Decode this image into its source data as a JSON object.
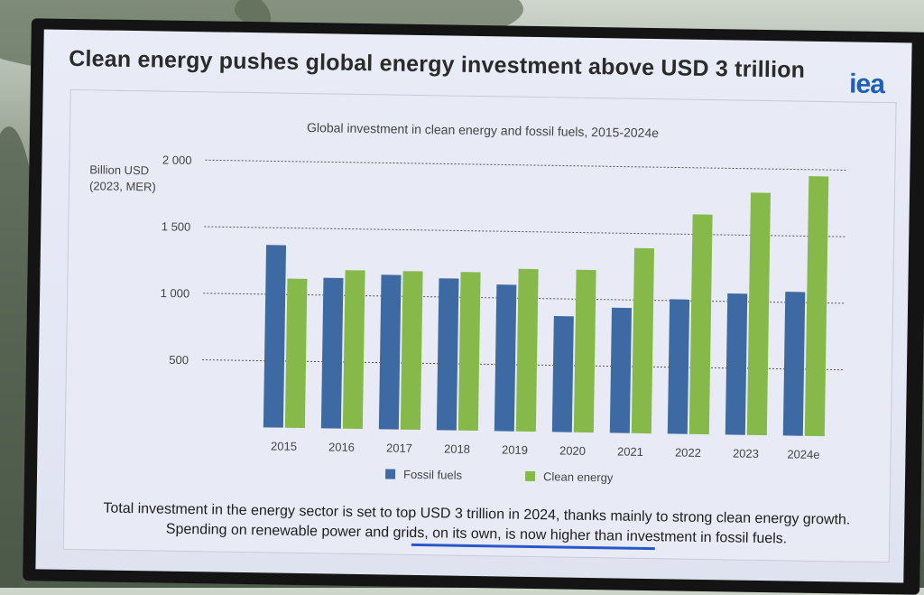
{
  "slide": {
    "title": "Clean energy pushes global energy investment above USD 3 trillion",
    "logo_text": "iea",
    "footnote_line1": "Total investment in the energy sector is set to top USD 3 trillion in 2024, thanks mainly to strong clean energy growth.",
    "footnote_line2": "Spending on renewable power and grids, on its own, is now higher than investment in fossil fuels."
  },
  "chart_data": {
    "type": "bar",
    "title": "Global investment in clean energy and fossil fuels, 2015-2024e",
    "ylabel_line1": "Billion USD",
    "ylabel_line2": "(2023, MER)",
    "xlabel": "",
    "ylim": [
      0,
      2000
    ],
    "yticks": [
      {
        "value": 500,
        "label": "500"
      },
      {
        "value": 1000,
        "label": "1 000"
      },
      {
        "value": 1500,
        "label": "1 500"
      },
      {
        "value": 2000,
        "label": "2 000"
      }
    ],
    "categories": [
      "2015",
      "2016",
      "2017",
      "2018",
      "2019",
      "2020",
      "2021",
      "2022",
      "2023",
      "2024e"
    ],
    "series": [
      {
        "name": "Fossil fuels",
        "color": "#3e6aa3",
        "values": [
          1370,
          1130,
          1160,
          1140,
          1100,
          870,
          940,
          1010,
          1060,
          1080
        ]
      },
      {
        "name": "Clean energy",
        "color": "#86b84a",
        "values": [
          1120,
          1190,
          1190,
          1190,
          1220,
          1220,
          1390,
          1650,
          1820,
          1950
        ]
      }
    ],
    "grid": true,
    "legend": "bottom"
  }
}
